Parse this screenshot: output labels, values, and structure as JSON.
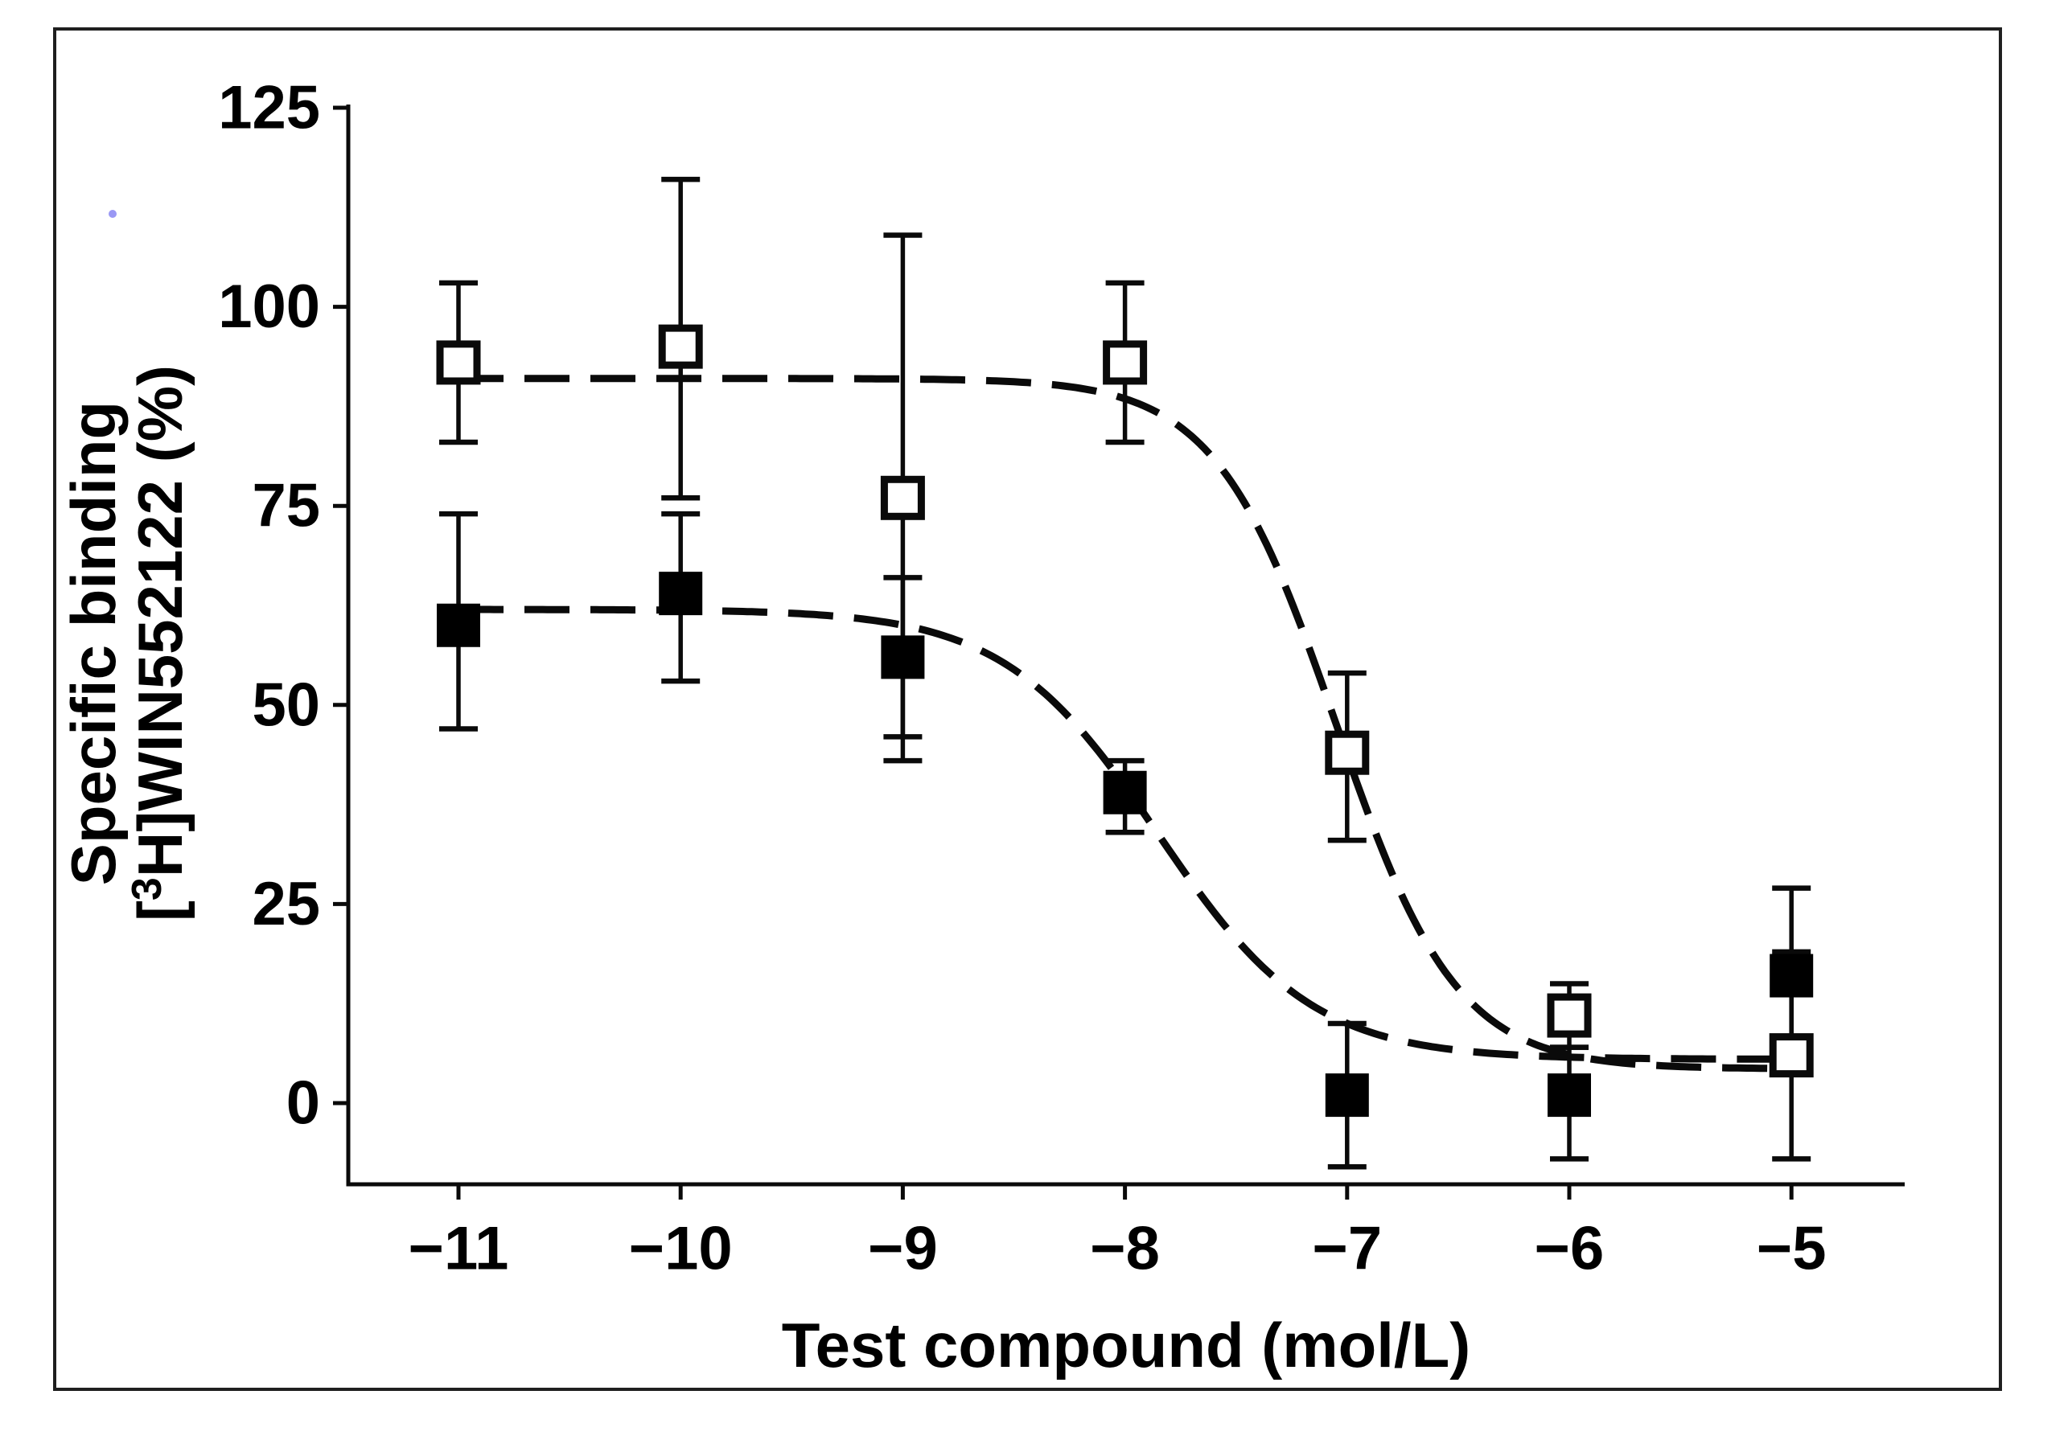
{
  "figure": {
    "background_color": "#ffffff",
    "frame_color": "#1f1f1f",
    "axis_color": "#0a0a0a",
    "curve_color": "#0a0a0a",
    "marker_open_fill": "#ffffff",
    "marker_filled_fill": "#000000",
    "artifact_dot_color": "#8886f2"
  },
  "chart_data": {
    "type": "scatter",
    "title": "",
    "xlabel": "Test compound (mol/L)",
    "ylabel_line1": "Specific binding",
    "ylabel_line2": {
      "prefix": "[",
      "sup": "3",
      "suffix": "H]WIN552122 (%)"
    },
    "xlim": [
      -11.6,
      -4.55
    ],
    "ylim": [
      -11,
      125
    ],
    "grid": false,
    "legend": "none",
    "x_ticks": [
      -11,
      -10,
      -9,
      -8,
      -7,
      -6,
      -5
    ],
    "x_tick_labels": [
      "−11",
      "−10",
      "−9",
      "−8",
      "−7",
      "−6",
      "−5"
    ],
    "y_ticks": [
      0,
      25,
      50,
      75,
      100,
      125
    ],
    "y_tick_labels": [
      "0",
      "25",
      "50",
      "75",
      "100",
      "125"
    ],
    "curve_style": "dashed",
    "series": [
      {
        "name": "open-square",
        "marker": "open-square",
        "x": [
          -11,
          -10,
          -9,
          -8,
          -7,
          -6,
          -5
        ],
        "y": [
          93,
          95,
          76,
          93,
          44,
          11,
          6
        ],
        "err_up": [
          10,
          21,
          33,
          10,
          10,
          4,
          13
        ],
        "err_down": [
          10,
          19,
          33,
          10,
          11,
          4,
          13
        ],
        "fit": {
          "top": 91,
          "bottom": 4.3,
          "log_ec50": -7.05,
          "hill": 1.6
        }
      },
      {
        "name": "filled-square",
        "marker": "filled-square",
        "x": [
          -11,
          -10,
          -9,
          -8,
          -7,
          -6,
          -5
        ],
        "y": [
          60,
          64,
          56,
          39,
          1,
          1,
          16
        ],
        "err_up": [
          14,
          10,
          10,
          4,
          9,
          6,
          11
        ],
        "err_down": [
          13,
          11,
          10,
          5,
          9,
          8,
          11
        ],
        "fit": {
          "top": 62,
          "bottom": 5.5,
          "log_ec50": -7.85,
          "hill": 1.25
        }
      }
    ]
  }
}
